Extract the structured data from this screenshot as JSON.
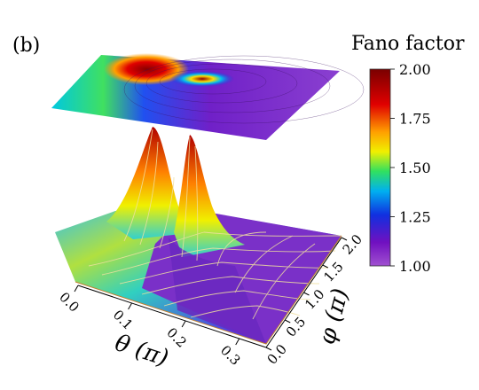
{
  "panel_label": "(b)",
  "chart_data": {
    "type": "surface3d",
    "title": "",
    "xlabel": "θ (π)",
    "ylabel": "φ (π)",
    "zlabel": "Fano factor",
    "x_ticks": [
      "0.0",
      "0.1",
      "0.2",
      "0.3"
    ],
    "y_ticks": [
      "0.0",
      "0.5",
      "1.0",
      "1.5",
      "2.0"
    ],
    "x_range": [
      0.0,
      0.35
    ],
    "y_range": [
      0.0,
      2.0
    ],
    "z_range": [
      1.0,
      2.0
    ],
    "colorbar": {
      "label": "Fano factor",
      "ticks": [
        "1.00",
        "1.25",
        "1.50",
        "1.75",
        "2.00"
      ],
      "range": [
        1.0,
        2.0
      ]
    },
    "projection": "contour map above surface",
    "grid_lines": "on",
    "peaks": [
      {
        "theta": 0.1,
        "phi": 2.0,
        "fano": 2.0
      },
      {
        "theta": 0.14,
        "phi": 1.45,
        "fano": 2.0
      }
    ],
    "baseline_fano_large_theta": 1.05,
    "colorscale": [
      "#7a0000",
      "#e00000",
      "#ffa000",
      "#f0f000",
      "#30e060",
      "#00b0f0",
      "#1030e0",
      "#7010c0",
      "#a050d0"
    ]
  }
}
